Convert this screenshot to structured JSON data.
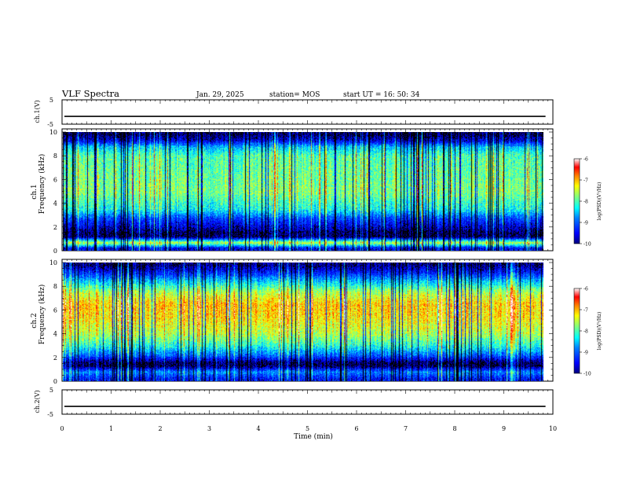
{
  "header": {
    "title": "VLF Spectra",
    "date": "Jan. 29, 2025",
    "station": "station= MOS",
    "start": "start  UT  =   16: 50: 34"
  },
  "colors": {
    "colormap": [
      "#00007f",
      "#0000ff",
      "#0080ff",
      "#00ffff",
      "#80ff80",
      "#ffff00",
      "#ff8000",
      "#ff0000",
      "#ffffff"
    ]
  },
  "chart_data": [
    {
      "type": "line",
      "panel": "ch1-waveform",
      "ylabel": "ch.1(V)",
      "ylim": [
        -5,
        5
      ],
      "y_ticklabels": [
        "5",
        "-5"
      ],
      "xlim": [
        0,
        10
      ],
      "series": [
        {
          "values": [
            -1.8,
            -1.8
          ]
        }
      ]
    },
    {
      "type": "heatmap",
      "panel": "ch1-spectrogram",
      "ylabel_lines": [
        "ch.1",
        "Frequency (kHz)"
      ],
      "xlim": [
        0,
        9.85
      ],
      "ylim": [
        0,
        10
      ],
      "y_ticklabels": [
        "0",
        "2",
        "4",
        "6",
        "8",
        "10"
      ],
      "colorbar": {
        "label": "log(PSD)(V²/Hz)",
        "min": -10,
        "max": -6,
        "ticks": [
          "-6",
          "-7",
          "-8",
          "-9",
          "-10"
        ]
      },
      "profile": [
        {
          "freq_khz": 0.25,
          "level": -9.5
        },
        {
          "freq_khz": 0.7,
          "level": -7.5
        },
        {
          "freq_khz": 1.2,
          "level": -10.0
        },
        {
          "freq_khz": 1.55,
          "level": -10.0
        },
        {
          "freq_khz": 2.1,
          "level": -9.6
        },
        {
          "freq_khz": 2.7,
          "level": -9.2
        },
        {
          "freq_khz": 3.5,
          "level": -8.3
        },
        {
          "freq_khz": 5.0,
          "level": -7.8
        },
        {
          "freq_khz": 6.5,
          "level": -7.9
        },
        {
          "freq_khz": 8.0,
          "level": -8.0
        },
        {
          "freq_khz": 8.8,
          "level": -8.6
        },
        {
          "freq_khz": 9.3,
          "level": -9.6
        },
        {
          "freq_khz": 9.8,
          "level": -10.0
        }
      ]
    },
    {
      "type": "heatmap",
      "panel": "ch2-spectrogram",
      "ylabel_lines": [
        "ch.2",
        "Frequency (kHz)"
      ],
      "xlim": [
        0,
        9.85
      ],
      "ylim": [
        0,
        10
      ],
      "y_ticklabels": [
        "0",
        "2",
        "4",
        "6",
        "8",
        "10"
      ],
      "colorbar": {
        "label": "log(PSD)(V²/Hz)",
        "min": -10,
        "max": -6,
        "ticks": [
          "-6",
          "-7",
          "-8",
          "-9",
          "-10"
        ]
      },
      "profile": [
        {
          "freq_khz": 0.25,
          "level": -9.4
        },
        {
          "freq_khz": 0.8,
          "level": -8.8
        },
        {
          "freq_khz": 1.3,
          "level": -10.0
        },
        {
          "freq_khz": 1.6,
          "level": -10.0
        },
        {
          "freq_khz": 2.2,
          "level": -9.0
        },
        {
          "freq_khz": 3.0,
          "level": -8.2
        },
        {
          "freq_khz": 4.0,
          "level": -7.6
        },
        {
          "freq_khz": 5.5,
          "level": -7.2
        },
        {
          "freq_khz": 6.5,
          "level": -7.1
        },
        {
          "freq_khz": 7.5,
          "level": -7.6
        },
        {
          "freq_khz": 8.5,
          "level": -8.6
        },
        {
          "freq_khz": 9.2,
          "level": -9.4
        },
        {
          "freq_khz": 9.8,
          "level": -9.9
        }
      ]
    },
    {
      "type": "line",
      "panel": "ch2-waveform",
      "ylabel": "ch.2(V)",
      "ylim": [
        -5,
        5
      ],
      "y_ticklabels": [
        "5",
        "-5"
      ],
      "xlim": [
        0,
        10
      ],
      "xlabel": "Time (min)",
      "x_ticklabels": [
        "0",
        "1",
        "2",
        "3",
        "4",
        "5",
        "6",
        "7",
        "8",
        "9",
        "10"
      ],
      "series": [
        {
          "values": [
            -1.8,
            -1.8
          ]
        }
      ]
    }
  ]
}
